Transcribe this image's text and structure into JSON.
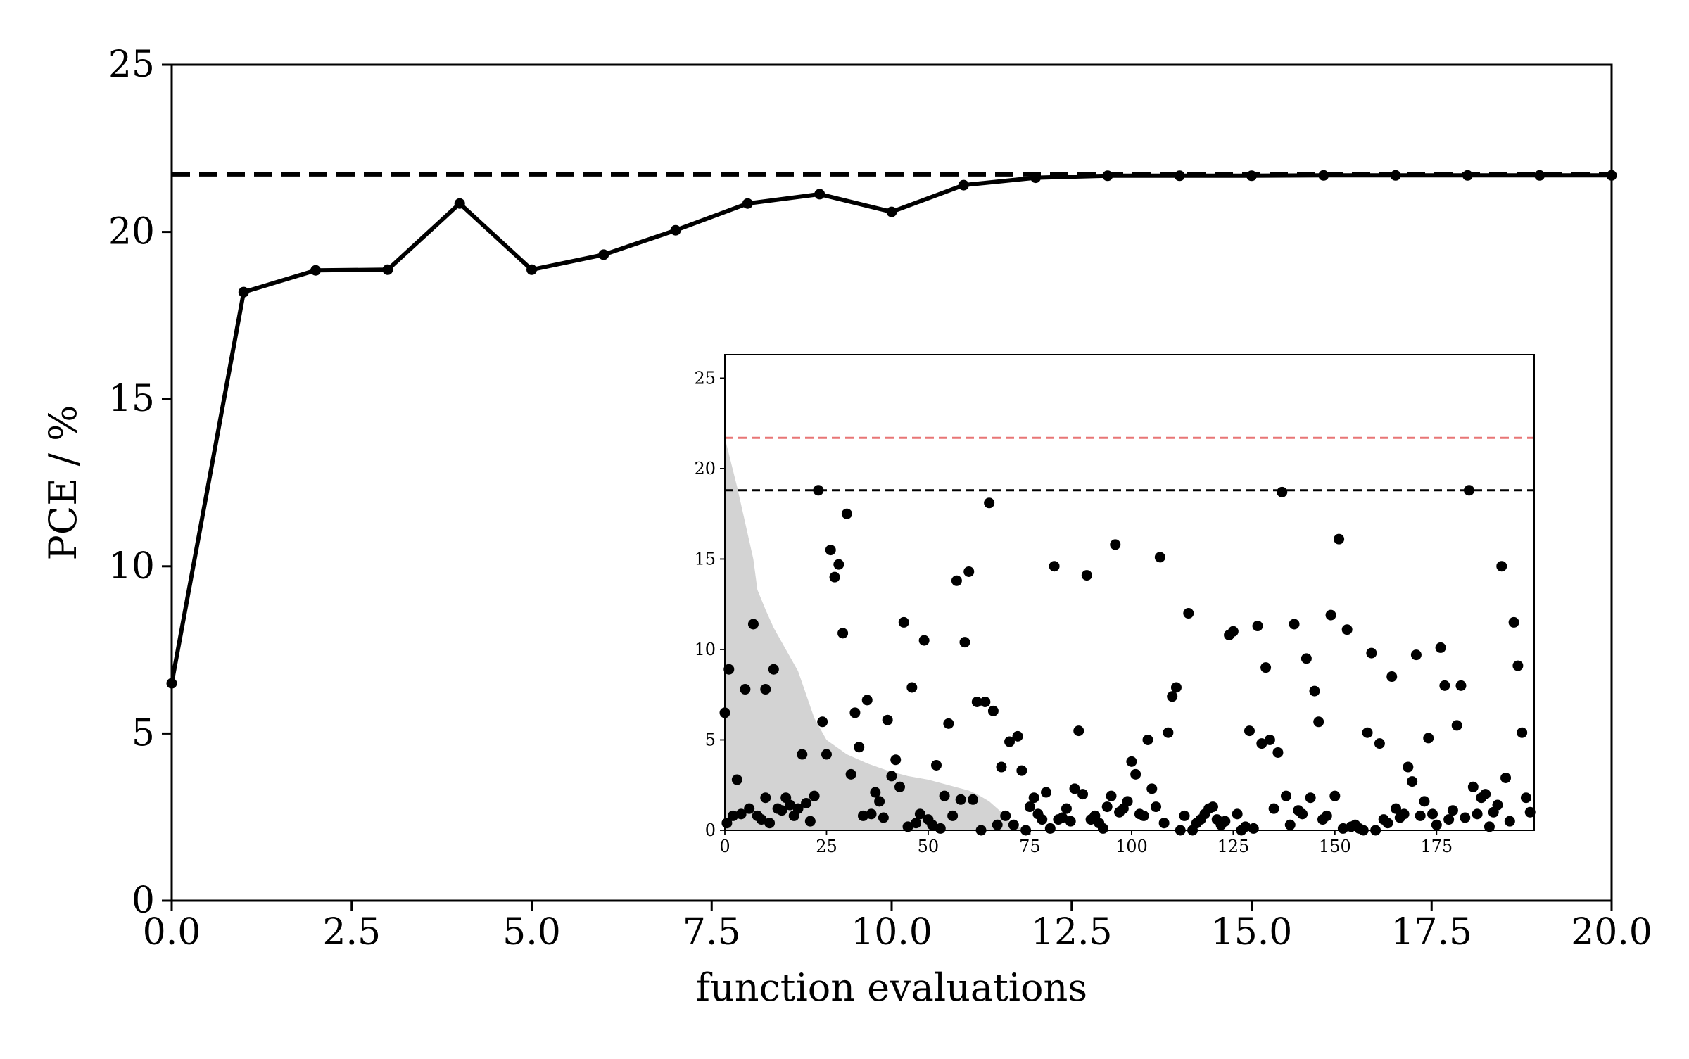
{
  "colors": {
    "line": "#000000",
    "reference": "#000000",
    "inset_reference": "#e87676",
    "inset_threshold": "#000000",
    "inset_fill": "#d3d3d3",
    "inset_points": "#000000"
  },
  "chart_data": [
    {
      "type": "line",
      "xlabel": "function evaluations",
      "ylabel": "PCE / %",
      "xlim": [
        0,
        20
      ],
      "ylim": [
        0,
        25
      ],
      "xticks": [
        0,
        2.5,
        5,
        7.5,
        10,
        12.5,
        15,
        17.5,
        20
      ],
      "xtick_labels": [
        "0.0",
        "2.5",
        "5.0",
        "7.5",
        "10.0",
        "12.5",
        "15.0",
        "17.5",
        "20.0"
      ],
      "yticks": [
        0,
        5,
        10,
        15,
        20,
        25
      ],
      "ytick_labels": [
        "0",
        "5",
        "10",
        "15",
        "20",
        "25"
      ],
      "grid": false,
      "series": [
        {
          "style": "solid line with markers",
          "x": [
            0,
            1,
            2,
            3,
            4,
            5,
            6,
            7,
            8,
            9,
            10,
            11,
            12,
            13,
            14,
            15,
            16,
            17,
            18,
            19,
            20
          ],
          "y": [
            6.5,
            18.2,
            18.85,
            18.87,
            20.85,
            18.87,
            19.32,
            20.05,
            20.85,
            21.13,
            20.6,
            21.4,
            21.62,
            21.68,
            21.68,
            21.68,
            21.69,
            21.69,
            21.69,
            21.69,
            21.69
          ]
        }
      ],
      "reference_line": {
        "y": 21.72,
        "style": "dashed"
      }
    },
    {
      "type": "scatter",
      "placement": "inset lower-right",
      "xlim": [
        0,
        199
      ],
      "ylim": [
        0,
        26.3
      ],
      "xticks": [
        0,
        25,
        50,
        75,
        100,
        125,
        150,
        175
      ],
      "xtick_labels": [
        "0",
        "25",
        "50",
        "75",
        "100",
        "125",
        "150",
        "175"
      ],
      "yticks": [
        0,
        5,
        10,
        15,
        20,
        25
      ],
      "ytick_labels": [
        "0",
        "5",
        "10",
        "15",
        "20",
        "25"
      ],
      "grid": false,
      "reference_lines": [
        {
          "y": 21.7,
          "style": "dashed",
          "color": "red"
        },
        {
          "y": 18.8,
          "style": "dashed",
          "color": "black"
        }
      ],
      "shaded_region": {
        "x": [
          0,
          3,
          5,
          7,
          8,
          10,
          12,
          15,
          18,
          20,
          22,
          25,
          30,
          35,
          40,
          45,
          50,
          55,
          60,
          62,
          65,
          68,
          70,
          72,
          75
        ],
        "y": [
          21.7,
          19.0,
          17.0,
          15.0,
          13.3,
          12.2,
          11.2,
          10.0,
          8.8,
          7.5,
          6.2,
          5.0,
          4.2,
          3.7,
          3.3,
          3.0,
          2.8,
          2.5,
          2.2,
          2.0,
          1.6,
          1.0,
          0.5,
          0.2,
          0
        ]
      },
      "points": {
        "x": [
          0,
          0.5,
          1,
          2,
          3,
          4,
          5,
          6,
          7,
          8,
          9,
          10,
          10,
          11,
          12,
          13,
          14,
          15,
          16,
          17,
          18,
          19,
          20,
          21,
          22,
          23,
          24,
          25,
          26,
          27,
          28,
          29,
          30,
          31,
          32,
          33,
          34,
          35,
          36,
          37,
          38,
          39,
          40,
          41,
          42,
          43,
          44,
          45,
          46,
          47,
          48,
          49,
          50,
          51,
          52,
          53,
          54,
          55,
          56,
          57,
          58,
          59,
          60,
          61,
          62,
          63,
          64,
          65,
          66,
          67,
          68,
          69,
          70,
          71,
          72,
          73,
          74,
          75,
          76,
          77,
          78,
          79,
          80,
          81,
          82,
          83,
          84,
          85,
          86,
          87,
          88,
          89,
          90,
          91,
          92,
          93,
          94,
          95,
          96,
          97,
          98,
          99,
          100,
          101,
          102,
          103,
          104,
          105,
          106,
          107,
          108,
          109,
          110,
          111,
          112,
          113,
          114,
          115,
          116,
          117,
          118,
          119,
          120,
          121,
          122,
          123,
          124,
          125,
          126,
          127,
          128,
          129,
          130,
          131,
          132,
          133,
          134,
          135,
          136,
          137,
          138,
          139,
          140,
          141,
          142,
          143,
          144,
          145,
          146,
          147,
          148,
          149,
          150,
          151,
          152,
          153,
          154,
          155,
          156,
          157,
          158,
          159,
          160,
          161,
          162,
          163,
          164,
          165,
          166,
          167,
          168,
          169,
          170,
          171,
          172,
          173,
          174,
          175,
          176,
          177,
          178,
          179,
          180,
          181,
          182,
          183,
          184,
          185,
          186,
          187,
          188,
          189,
          190,
          191,
          192,
          193,
          194,
          195,
          196,
          197,
          198
        ],
        "y": [
          6.5,
          0.4,
          8.9,
          0.8,
          2.8,
          0.9,
          7.8,
          1.2,
          11.4,
          0.8,
          0.6,
          7.8,
          1.8,
          0.4,
          8.9,
          1.2,
          1.1,
          1.8,
          1.4,
          0.8,
          1.2,
          4.2,
          1.5,
          0.5,
          1.9,
          18.8,
          6.0,
          4.2,
          15.5,
          14.0,
          14.7,
          10.9,
          17.5,
          3.1,
          6.5,
          4.6,
          0.8,
          7.2,
          0.9,
          2.1,
          1.6,
          0.7,
          6.1,
          3.0,
          3.9,
          2.4,
          11.5,
          0.2,
          7.9,
          0.4,
          0.9,
          10.5,
          0.6,
          0.3,
          3.6,
          0.1,
          1.9,
          5.9,
          0.8,
          13.8,
          1.7,
          10.4,
          14.3,
          1.7,
          7.1,
          0.0,
          7.1,
          18.1,
          6.6,
          0.3,
          3.5,
          0.8,
          4.9,
          0.3,
          5.2,
          3.3,
          0.0,
          1.3,
          1.8,
          0.9,
          0.6,
          2.1,
          0.1,
          14.6,
          0.6,
          0.7,
          1.2,
          0.5,
          2.3,
          5.5,
          2.0,
          14.1,
          0.6,
          0.8,
          0.4,
          0.1,
          1.3,
          1.9,
          15.8,
          1.0,
          1.2,
          1.6,
          3.8,
          3.1,
          0.9,
          0.8,
          5.0,
          2.3,
          1.3,
          15.1,
          0.4,
          5.4,
          7.4,
          7.9,
          0.0,
          0.8,
          12.0,
          0.0,
          0.4,
          0.6,
          0.9,
          1.2,
          1.3,
          0.6,
          0.3,
          0.5,
          10.8,
          11.0,
          0.9,
          0.0,
          0.2,
          5.5,
          0.1,
          11.3,
          4.8,
          9.0,
          5.0,
          1.2,
          4.3,
          18.7,
          1.9,
          0.3,
          11.4,
          1.1,
          0.9,
          9.5,
          1.8,
          7.7,
          6.0,
          0.6,
          0.8,
          11.9,
          1.9,
          16.1,
          0.1,
          11.1,
          0.2,
          0.3,
          0.1,
          0.0,
          5.4,
          9.8,
          0.0,
          4.8,
          0.6,
          0.4,
          8.5,
          1.2,
          0.7,
          0.9,
          3.5,
          2.7,
          9.7,
          0.8,
          1.6,
          5.1,
          0.9,
          0.3,
          10.1,
          8.0,
          0.6,
          1.1,
          5.8,
          8.0,
          0.7,
          18.8,
          2.4,
          0.9,
          1.8,
          2.0,
          0.2,
          1.0,
          1.4,
          14.6,
          2.9,
          0.5,
          11.5,
          9.1,
          5.4,
          1.8,
          1.0
        ]
      }
    }
  ]
}
